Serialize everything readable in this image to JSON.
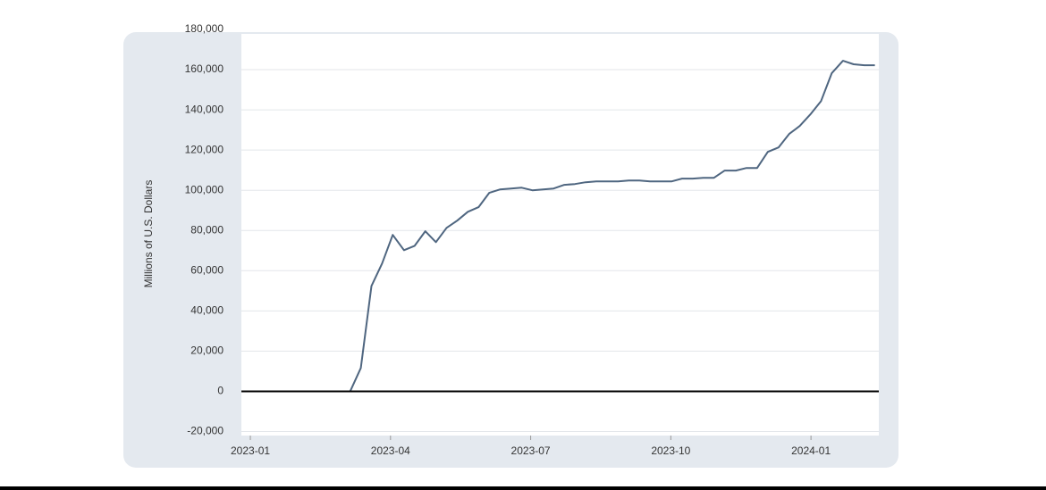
{
  "chart_data": {
    "type": "line",
    "y_axis_label": "Millions of U.S. Dollars",
    "ylim": [
      -22000,
      180000
    ],
    "yticks": [
      {
        "value": -20000,
        "label": "-20,000"
      },
      0,
      {
        "value": 20000,
        "label": "20,000"
      },
      {
        "value": 40000,
        "label": "40,000"
      },
      {
        "value": 60000,
        "label": "60,000"
      },
      {
        "value": 80000,
        "label": "80,000"
      },
      {
        "value": 100000,
        "label": "100,000"
      },
      {
        "value": 120000,
        "label": "120,000"
      },
      {
        "value": 140000,
        "label": "140,000"
      },
      {
        "value": 160000,
        "label": "160,000"
      },
      {
        "value": 180000,
        "label": "180,000"
      }
    ],
    "xlim": [
      2022.984,
      2024.121
    ],
    "xticks": [
      {
        "value": 2023.0,
        "label": "2023-01"
      },
      {
        "value": 2023.25,
        "label": "2023-04"
      },
      {
        "value": 2023.5,
        "label": "2023-07"
      },
      {
        "value": 2023.75,
        "label": "2023-10"
      },
      {
        "value": 2024.0,
        "label": "2024-01"
      }
    ],
    "grid": true,
    "x": [
      2023.178,
      2023.197,
      2023.216,
      2023.235,
      2023.254,
      2023.274,
      2023.293,
      2023.312,
      2023.331,
      2023.35,
      2023.369,
      2023.388,
      2023.407,
      2023.426,
      2023.445,
      2023.465,
      2023.484,
      2023.503,
      2023.522,
      2023.541,
      2023.56,
      2023.579,
      2023.598,
      2023.617,
      2023.636,
      2023.656,
      2023.675,
      2023.694,
      2023.713,
      2023.732,
      2023.751,
      2023.77,
      2023.789,
      2023.808,
      2023.827,
      2023.846,
      2023.866,
      2023.885,
      2023.904,
      2023.923,
      2023.942,
      2023.961,
      2023.98,
      2023.999,
      2024.018,
      2024.037,
      2024.057,
      2024.076,
      2024.095,
      2024.114
    ],
    "series": [
      {
        "color": "#4f6680",
        "values": [
          0,
          11600,
          52400,
          63600,
          77800,
          70200,
          72400,
          79600,
          74200,
          81300,
          84900,
          89300,
          91600,
          98700,
          100400,
          100900,
          101300,
          100000,
          100400,
          100900,
          102700,
          103100,
          104000,
          104400,
          104400,
          104400,
          104900,
          104900,
          104400,
          104400,
          104400,
          105800,
          105800,
          106200,
          106200,
          109800,
          109800,
          111100,
          111100,
          119100,
          121300,
          128000,
          132000,
          137800,
          144400,
          158200,
          164400,
          162700,
          162200,
          162200
        ]
      }
    ]
  }
}
